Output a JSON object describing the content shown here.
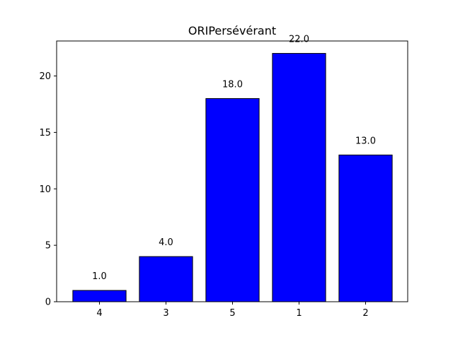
{
  "chart_data": {
    "type": "bar",
    "title": "ORIPersévérant",
    "xlabel": "",
    "ylabel": "",
    "categories": [
      "4",
      "3",
      "5",
      "1",
      "2"
    ],
    "values": [
      1.0,
      4.0,
      18.0,
      22.0,
      13.0
    ],
    "value_labels": [
      "1.0",
      "4.0",
      "18.0",
      "22.0",
      "13.0"
    ],
    "ylim": [
      0,
      23.1
    ],
    "yticks": [
      0,
      5,
      10,
      15,
      20
    ],
    "ytick_labels": [
      "0",
      "5",
      "10",
      "15",
      "20"
    ],
    "grid": false,
    "legend": "none",
    "colors": {
      "bar_fill": "#0000ff",
      "bar_edge": "#000000",
      "axis": "#000000",
      "text": "#000000"
    }
  }
}
